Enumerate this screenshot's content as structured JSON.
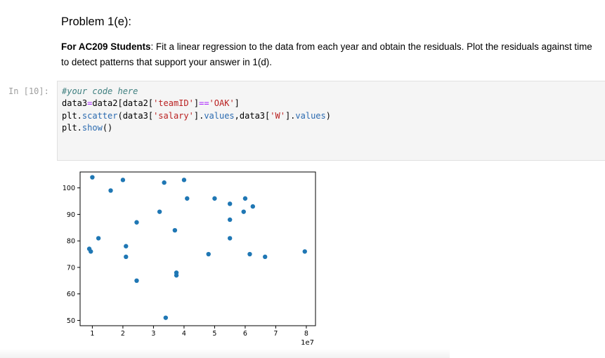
{
  "markdown": {
    "title": "Problem 1(e):",
    "bold_prefix": "For AC209 Students",
    "text": ": Fit a linear regression to the data from each year and obtain the residuals. Plot the residuals against time to detect patterns that support your answer in 1(d)."
  },
  "code_cell": {
    "prompt": "In [10]:",
    "lines": {
      "l1_comment": "#your code here",
      "l2_a": "data3",
      "l2_op1": "=",
      "l2_b": "data2[data2[",
      "l2_str1": "'teamID'",
      "l2_c": "]",
      "l2_op2": "==",
      "l2_str2": "'OAK'",
      "l2_d": "]",
      "l3_a": "plt.",
      "l3_fn": "scatter",
      "l3_b": "(data3[",
      "l3_str1": "'salary'",
      "l3_c": "].",
      "l3_attr1": "values",
      "l3_d": ",data3[",
      "l3_str2": "'W'",
      "l3_e": "].",
      "l3_attr2": "values",
      "l3_f": ")",
      "l4_a": "plt.",
      "l4_fn": "show",
      "l4_b": "()"
    }
  },
  "chart_data": {
    "type": "scatter",
    "title": "",
    "xlabel": "",
    "ylabel": "",
    "x_offset_label": "1e7",
    "xlim": [
      0.6,
      8.3
    ],
    "ylim": [
      48,
      106
    ],
    "x_ticks": [
      1,
      2,
      3,
      4,
      5,
      6,
      7,
      8
    ],
    "y_ticks": [
      50,
      60,
      70,
      80,
      90,
      100
    ],
    "grid": false,
    "marker_color": "#1f77b4",
    "x": [
      1.0,
      0.9,
      0.95,
      1.2,
      1.6,
      2.0,
      2.1,
      2.1,
      2.45,
      2.45,
      3.2,
      3.35,
      3.4,
      3.7,
      3.75,
      3.75,
      4.0,
      4.1,
      4.8,
      5.0,
      5.5,
      5.5,
      5.5,
      5.95,
      6.0,
      6.15,
      6.25,
      6.65,
      7.95
    ],
    "y": [
      104,
      77,
      76,
      81,
      99,
      103,
      78,
      74,
      87,
      65,
      91,
      102,
      51,
      84,
      68,
      67,
      103,
      96,
      75,
      96,
      94,
      88,
      81,
      91,
      96,
      75,
      93,
      74,
      76
    ]
  }
}
